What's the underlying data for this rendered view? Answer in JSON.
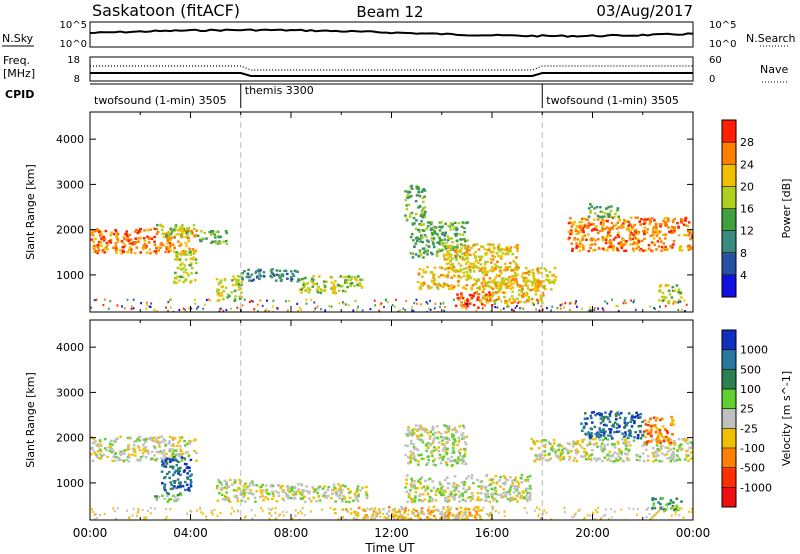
{
  "header": {
    "station": "Saskatoon (fitACF)",
    "beam": "Beam 12",
    "date": "03/Aug/2017"
  },
  "top_panels": {
    "nsky_label": "N.Sky",
    "nsky_ticks": [
      "10^5",
      "10^0"
    ],
    "nsearch_label": "N.Search",
    "nsearch_ticks": [
      "10^5",
      "10^0"
    ],
    "freq_label_line1": "Freq.",
    "freq_label_line2": "[MHz]",
    "freq_ticks": [
      "18",
      "8"
    ],
    "nave_label": "Nave",
    "nave_ticks": [
      "60",
      "0"
    ],
    "cpid_label": "CPID",
    "cpid_segments": [
      {
        "label": "twofsound (1-min) 3505",
        "start_hour": 0,
        "end_hour": 6
      },
      {
        "label": "themis 3300",
        "start_hour": 6,
        "end_hour": 18
      },
      {
        "label": "twofsound (1-min) 3505",
        "start_hour": 18,
        "end_hour": 24
      }
    ]
  },
  "chart_data": [
    {
      "type": "heatmap",
      "name": "power",
      "ylabel": "Slant Range [km]",
      "xlabel": "Time UT",
      "xlim": [
        0,
        24
      ],
      "ylim": [
        180,
        4600
      ],
      "yticks": [
        1000,
        2000,
        3000,
        4000
      ],
      "xtick_labels": [
        "00:00",
        "04:00",
        "08:00",
        "12:00",
        "16:00",
        "20:00",
        "00:00"
      ],
      "colorbar": {
        "label": "Power [dB]",
        "tick_labels": [
          "4",
          "8",
          "12",
          "16",
          "20",
          "24",
          "28"
        ],
        "colors": [
          "#1010e0",
          "#2850a0",
          "#3a8a80",
          "#40a040",
          "#b0d020",
          "#f0c000",
          "#ff8000",
          "#ff2000"
        ]
      },
      "regions": [
        {
          "t0": 0.0,
          "t1": 4.2,
          "r0": 1500,
          "r1": 2050,
          "c": 6
        },
        {
          "t0": 2.6,
          "t1": 4.1,
          "r0": 1850,
          "r1": 2150,
          "c": 4
        },
        {
          "t0": 3.3,
          "t1": 4.2,
          "r0": 850,
          "r1": 1550,
          "c": 4
        },
        {
          "t0": 4.2,
          "t1": 5.4,
          "r0": 1700,
          "r1": 2000,
          "c": 3
        },
        {
          "t0": 5.0,
          "t1": 6.0,
          "r0": 450,
          "r1": 1000,
          "c": 4
        },
        {
          "t0": 6.0,
          "t1": 8.3,
          "r0": 880,
          "r1": 1150,
          "c": 2
        },
        {
          "t0": 8.3,
          "t1": 10.8,
          "r0": 620,
          "r1": 1000,
          "c": 4
        },
        {
          "t0": 12.7,
          "t1": 15.0,
          "r0": 1400,
          "r1": 2200,
          "c": 3
        },
        {
          "t0": 12.5,
          "t1": 13.3,
          "r0": 2200,
          "r1": 3000,
          "c": 3
        },
        {
          "t0": 14.0,
          "t1": 17.0,
          "r0": 1100,
          "r1": 1700,
          "c": 5
        },
        {
          "t0": 13.0,
          "t1": 18.5,
          "r0": 700,
          "r1": 1200,
          "c": 5
        },
        {
          "t0": 14.5,
          "t1": 16.0,
          "r0": 300,
          "r1": 650,
          "c": 7
        },
        {
          "t0": 15.5,
          "t1": 18.0,
          "r0": 400,
          "r1": 900,
          "c": 5
        },
        {
          "t0": 19.0,
          "t1": 24.0,
          "r0": 1550,
          "r1": 2300,
          "c": 6
        },
        {
          "t0": 19.8,
          "t1": 21.0,
          "r0": 2300,
          "r1": 2600,
          "c": 3
        },
        {
          "t0": 22.5,
          "t1": 23.5,
          "r0": 400,
          "r1": 800,
          "c": 4
        }
      ]
    },
    {
      "type": "heatmap",
      "name": "velocity",
      "ylabel": "Slant Range [km]",
      "xlabel": "Time UT",
      "xlim": [
        0,
        24
      ],
      "ylim": [
        180,
        4600
      ],
      "yticks": [
        1000,
        2000,
        3000,
        4000
      ],
      "xtick_labels": [
        "00:00",
        "04:00",
        "08:00",
        "12:00",
        "16:00",
        "20:00",
        "00:00"
      ],
      "colorbar": {
        "label": "Velocity [m s^-1]",
        "tick_labels": [
          "1000",
          "500",
          "100",
          "25",
          "-25",
          "-100",
          "-500",
          "-1000"
        ],
        "colors": [
          "#1030c0",
          "#2878a0",
          "#2a8050",
          "#60d030",
          "#c0c0c0",
          "#f0c000",
          "#ff8000",
          "#ff3000",
          "#ee1010"
        ]
      },
      "regions": [
        {
          "t0": 0.0,
          "t1": 4.2,
          "r0": 1500,
          "r1": 2050,
          "c": 4
        },
        {
          "t0": 2.8,
          "t1": 4.0,
          "r0": 800,
          "r1": 1600,
          "c": 1
        },
        {
          "t0": 2.5,
          "t1": 3.6,
          "r0": 600,
          "r1": 800,
          "c": 3
        },
        {
          "t0": 5.0,
          "t1": 6.5,
          "r0": 600,
          "r1": 1100,
          "c": 4
        },
        {
          "t0": 6.5,
          "t1": 11.0,
          "r0": 600,
          "r1": 1000,
          "c": 4
        },
        {
          "t0": 12.5,
          "t1": 15.0,
          "r0": 1400,
          "r1": 2300,
          "c": 4
        },
        {
          "t0": 12.5,
          "t1": 17.5,
          "r0": 600,
          "r1": 1200,
          "c": 4
        },
        {
          "t0": 10.0,
          "t1": 16.0,
          "r0": 200,
          "r1": 500,
          "c": 5
        },
        {
          "t0": 17.5,
          "t1": 24.0,
          "r0": 1500,
          "r1": 2000,
          "c": 4
        },
        {
          "t0": 19.5,
          "t1": 22.0,
          "r0": 2000,
          "r1": 2600,
          "c": 1
        },
        {
          "t0": 22.0,
          "t1": 23.2,
          "r0": 1900,
          "r1": 2500,
          "c": 6
        },
        {
          "t0": 22.3,
          "t1": 23.5,
          "r0": 400,
          "r1": 700,
          "c": 2
        }
      ]
    }
  ]
}
